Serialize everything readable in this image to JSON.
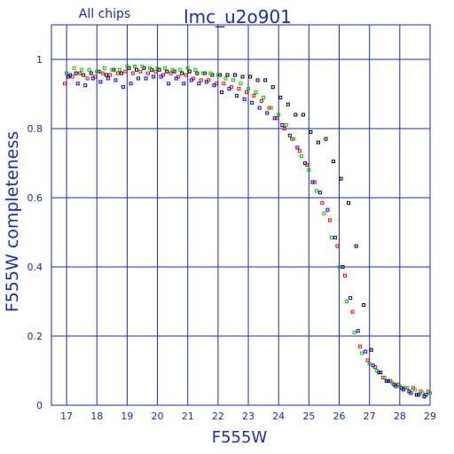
{
  "chart_data": {
    "type": "scatter",
    "title": "lmc_u2o901",
    "subtitle": "All chips",
    "xlabel": "F555W",
    "ylabel": "F555W completeness",
    "xlim": [
      16.5,
      29
    ],
    "ylim": [
      0,
      1.1
    ],
    "xticks": [
      17,
      18,
      19,
      20,
      21,
      22,
      23,
      24,
      25,
      26,
      27,
      28,
      29
    ],
    "yticks": [
      0,
      0.2,
      0.4,
      0.6,
      0.8,
      1
    ],
    "ytick_labels": [
      "0",
      "0.2",
      "0.4",
      "0.6",
      "0.8",
      "1"
    ],
    "grid": true,
    "colors": {
      "axis": "#1a2cc0",
      "text": "#1a2cc0",
      "grid": "#1a2cc0"
    },
    "series": [
      {
        "color": "#000000",
        "x": [
          17.0,
          17.25,
          17.5,
          17.75,
          18.0,
          18.25,
          18.5,
          18.75,
          19.0,
          19.25,
          19.5,
          19.75,
          20.0,
          20.25,
          20.5,
          20.75,
          21.0,
          21.25,
          21.5,
          21.75,
          22.0,
          22.25,
          22.5,
          22.75,
          23.0,
          23.25,
          23.5,
          23.75,
          24.0,
          24.25,
          24.5,
          24.75,
          25.0,
          25.25,
          25.5,
          25.75,
          26.0,
          26.25,
          26.5,
          26.75,
          27.0,
          27.25,
          27.5,
          27.75,
          28.0,
          28.25,
          28.5,
          28.75,
          29.0
        ],
        "y": [
          0.95,
          0.96,
          0.955,
          0.96,
          0.965,
          0.955,
          0.97,
          0.96,
          0.975,
          0.97,
          0.975,
          0.97,
          0.97,
          0.965,
          0.965,
          0.96,
          0.965,
          0.96,
          0.96,
          0.955,
          0.955,
          0.955,
          0.955,
          0.95,
          0.95,
          0.94,
          0.94,
          0.92,
          0.89,
          0.87,
          0.84,
          0.84,
          0.79,
          0.76,
          0.77,
          0.705,
          0.655,
          0.585,
          0.46,
          0.29,
          0.16,
          0.095,
          0.07,
          0.06,
          0.05,
          0.04,
          0.03,
          0.025,
          0.02
        ]
      },
      {
        "color": "#ff0000",
        "x": [
          17.0,
          17.25,
          17.5,
          17.75,
          18.0,
          18.25,
          18.5,
          18.75,
          19.0,
          19.25,
          19.5,
          19.75,
          20.0,
          20.25,
          20.5,
          20.75,
          21.0,
          21.25,
          21.5,
          21.75,
          22.0,
          22.25,
          22.5,
          22.75,
          23.0,
          23.25,
          23.5,
          23.75,
          24.0,
          24.25,
          24.5,
          24.75,
          25.0,
          25.25,
          25.5,
          25.75,
          26.0,
          26.25,
          26.5,
          26.75,
          27.0,
          27.25,
          27.5,
          27.75,
          28.0,
          28.25,
          28.5,
          28.75,
          29.0
        ],
        "y": [
          0.93,
          0.95,
          0.96,
          0.945,
          0.95,
          0.96,
          0.955,
          0.96,
          0.965,
          0.96,
          0.965,
          0.96,
          0.965,
          0.955,
          0.96,
          0.95,
          0.955,
          0.945,
          0.94,
          0.94,
          0.93,
          0.93,
          0.92,
          0.915,
          0.905,
          0.895,
          0.88,
          0.86,
          0.83,
          0.8,
          0.77,
          0.735,
          0.695,
          0.645,
          0.585,
          0.535,
          0.46,
          0.375,
          0.27,
          0.17,
          0.13,
          0.11,
          0.08,
          0.07,
          0.06,
          0.05,
          0.05,
          0.04,
          0.04
        ]
      },
      {
        "color": "#00cc00",
        "x": [
          17.0,
          17.25,
          17.5,
          17.75,
          18.0,
          18.25,
          18.5,
          18.75,
          19.0,
          19.25,
          19.5,
          19.75,
          20.0,
          20.25,
          20.5,
          20.75,
          21.0,
          21.25,
          21.5,
          21.75,
          22.0,
          22.25,
          22.5,
          22.75,
          23.0,
          23.25,
          23.5,
          23.75,
          24.0,
          24.25,
          24.5,
          24.75,
          25.0,
          25.25,
          25.5,
          25.75,
          26.0,
          26.25,
          26.5,
          26.75,
          27.0,
          27.25,
          27.5,
          27.75,
          28.0,
          28.25,
          28.5,
          28.75,
          29.0
        ],
        "y": [
          0.96,
          0.975,
          0.97,
          0.97,
          0.965,
          0.975,
          0.97,
          0.97,
          0.98,
          0.98,
          0.98,
          0.975,
          0.975,
          0.975,
          0.97,
          0.97,
          0.975,
          0.97,
          0.96,
          0.96,
          0.955,
          0.945,
          0.94,
          0.93,
          0.915,
          0.905,
          0.89,
          0.86,
          0.84,
          0.81,
          0.77,
          0.72,
          0.68,
          0.62,
          0.555,
          0.485,
          0.4,
          0.3,
          0.21,
          0.15,
          0.12,
          0.1,
          0.08,
          0.065,
          0.055,
          0.05,
          0.045,
          0.035,
          0.035
        ]
      },
      {
        "color": "#0000ff",
        "x": [
          17.0,
          17.25,
          17.5,
          17.75,
          18.0,
          18.25,
          18.5,
          18.75,
          19.0,
          19.25,
          19.5,
          19.75,
          20.0,
          20.25,
          20.5,
          20.75,
          21.0,
          21.25,
          21.5,
          21.75,
          22.0,
          22.25,
          22.5,
          22.75,
          23.0,
          23.25,
          23.5,
          23.75,
          24.0,
          24.25,
          24.5,
          24.75,
          25.0,
          25.25,
          25.5,
          25.75,
          26.0,
          26.25,
          26.5,
          26.75,
          27.0,
          27.25,
          27.5,
          27.75,
          28.0,
          28.25,
          28.5,
          28.75,
          29.0
        ],
        "y": [
          0.955,
          0.93,
          0.925,
          0.945,
          0.935,
          0.945,
          0.94,
          0.92,
          0.93,
          0.945,
          0.945,
          0.95,
          0.95,
          0.93,
          0.945,
          0.93,
          0.94,
          0.93,
          0.935,
          0.925,
          0.905,
          0.915,
          0.895,
          0.885,
          0.875,
          0.86,
          0.845,
          0.83,
          0.81,
          0.78,
          0.745,
          0.7,
          0.645,
          0.615,
          0.565,
          0.485,
          0.4,
          0.31,
          0.215,
          0.155,
          0.115,
          0.095,
          0.07,
          0.055,
          0.045,
          0.035,
          0.03,
          0.03,
          0.025
        ]
      }
    ]
  }
}
